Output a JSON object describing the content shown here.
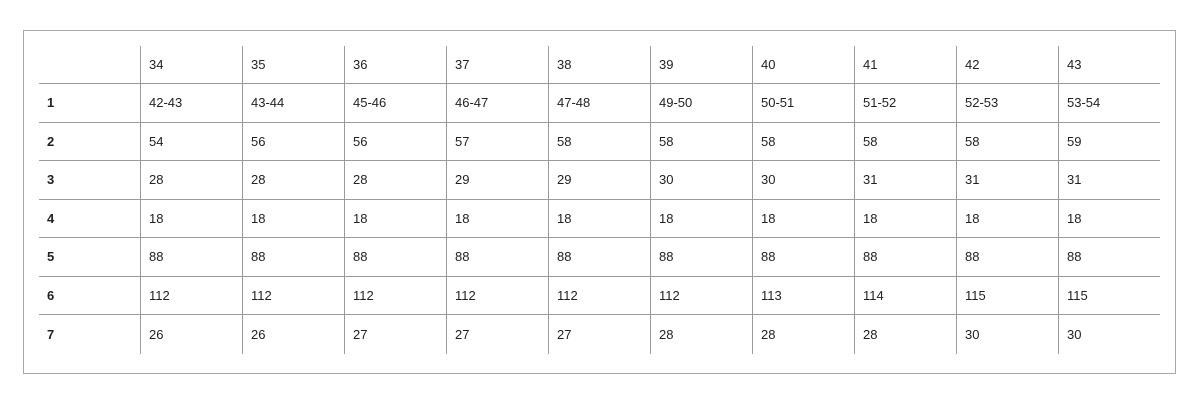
{
  "table": {
    "corner": "",
    "headers": [
      "34",
      "35",
      "36",
      "37",
      "38",
      "39",
      "40",
      "41",
      "42",
      "43"
    ],
    "rows": [
      {
        "label": "1",
        "values": [
          "42-43",
          "43-44",
          "45-46",
          "46-47",
          "47-48",
          "49-50",
          "50-51",
          "51-52",
          "52-53",
          "53-54"
        ]
      },
      {
        "label": "2",
        "values": [
          "54",
          "56",
          "56",
          "57",
          "58",
          "58",
          "58",
          "58",
          "58",
          "59"
        ]
      },
      {
        "label": "3",
        "values": [
          "28",
          "28",
          "28",
          "29",
          "29",
          "30",
          "30",
          "31",
          "31",
          "31"
        ]
      },
      {
        "label": "4",
        "values": [
          "18",
          "18",
          "18",
          "18",
          "18",
          "18",
          "18",
          "18",
          "18",
          "18"
        ]
      },
      {
        "label": "5",
        "values": [
          "88",
          "88",
          "88",
          "88",
          "88",
          "88",
          "88",
          "88",
          "88",
          "88"
        ]
      },
      {
        "label": "6",
        "values": [
          "112",
          "112",
          "112",
          "112",
          "112",
          "112",
          "113",
          "114",
          "115",
          "115"
        ]
      },
      {
        "label": "7",
        "values": [
          "26",
          "26",
          "27",
          "27",
          "27",
          "28",
          "28",
          "28",
          "30",
          "30"
        ]
      }
    ]
  }
}
